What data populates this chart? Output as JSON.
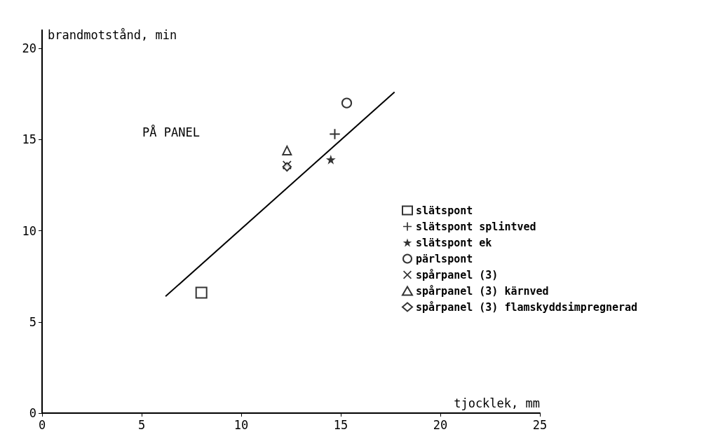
{
  "chart_data": {
    "type": "scatter",
    "xlabel": "tjocklek, mm",
    "ylabel": "brandmotstånd, min",
    "xlim": [
      0,
      25
    ],
    "ylim": [
      0,
      21
    ],
    "xticks": [
      0,
      5,
      10,
      15,
      20,
      25
    ],
    "yticks": [
      0,
      5,
      10,
      15,
      20
    ],
    "grid": false,
    "legend": "right",
    "annotations": [
      "PÅ PANEL"
    ],
    "series": [
      {
        "name": "slätspont",
        "color": "#000000",
        "marker": "square",
        "x": [
          8.0
        ],
        "values": [
          6.6
        ]
      },
      {
        "name": "slätspont splintved",
        "color": "#000000",
        "marker": "plus",
        "x": [
          14.7
        ],
        "values": [
          15.3
        ]
      },
      {
        "name": "slätspont ek",
        "color": "#000000",
        "marker": "star",
        "x": [
          14.5
        ],
        "values": [
          13.9
        ]
      },
      {
        "name": "pärlspont",
        "color": "#000000",
        "marker": "circle",
        "x": [
          15.3
        ],
        "values": [
          17.0
        ]
      },
      {
        "name": "spårpanel (3)",
        "color": "#000000",
        "marker": "cross",
        "x": [
          12.3
        ],
        "values": [
          13.6
        ]
      },
      {
        "name": "spårpanel (3) kärnved",
        "color": "#000000",
        "marker": "triangle",
        "x": [
          12.3
        ],
        "values": [
          14.4
        ]
      },
      {
        "name": "spårpanel (3) flamskyddsimpregnerad",
        "color": "#000000",
        "marker": "diamond",
        "x": [
          12.3
        ],
        "values": [
          13.5
        ]
      },
      {
        "type": "line",
        "color": "#000000",
        "marker": "none",
        "x": [
          6.2,
          17.7
        ],
        "values": [
          6.4,
          17.6
        ]
      }
    ]
  }
}
